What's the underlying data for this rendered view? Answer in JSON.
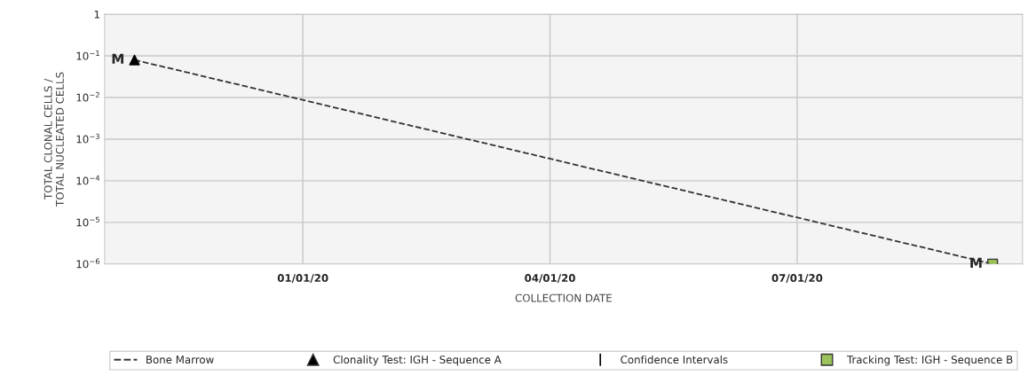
{
  "chart_data": {
    "type": "line",
    "xlabel": "COLLECTION DATE",
    "ylabel": "TOTAL CLONAL CELLS /\nTOTAL NUCLEATED CELLS",
    "log": "y",
    "grid": true,
    "legend": "bottom",
    "xlim": [
      "2019-10-20",
      "2020-09-22"
    ],
    "xticks": [
      {
        "value": "2020-01-01",
        "label": "01/01/20"
      },
      {
        "value": "2020-04-01",
        "label": "04/01/20"
      },
      {
        "value": "2020-07-01",
        "label": "07/01/20"
      }
    ],
    "ylim": [
      1e-06,
      1
    ],
    "yticks": [
      {
        "value": 1e-06,
        "label": "10$^{−6}$"
      },
      {
        "value": 1e-05,
        "label": "10$^{−5}$"
      },
      {
        "value": 0.0001,
        "label": "10$^{−4}$"
      },
      {
        "value": 0.001,
        "label": "10$^{−3}$"
      },
      {
        "value": 0.01,
        "label": "10$^{−2}$"
      },
      {
        "value": 0.1,
        "label": "10$^{−1}$"
      },
      1
    ],
    "series": [
      {
        "name": "Bone Marrow",
        "line_style": "dashed",
        "color": "#333333",
        "x": [
          "2019-10-31",
          "2020-09-11"
        ],
        "values": [
          0.08,
          1e-06
        ]
      },
      {
        "name": "Clonality Test: IGH - Sequence A",
        "type": "scatter",
        "marker": "triangle",
        "color": "#000000",
        "x": [
          "2019-10-31"
        ],
        "values": [
          0.08
        ]
      },
      {
        "name": "Confidence Intervals",
        "type": "scatter",
        "marker": "none",
        "color": "#000000"
      },
      {
        "name": "Tracking Test: IGH - Sequence B",
        "type": "scatter",
        "marker": "square",
        "color": "#9bc25a",
        "x": [
          "2020-09-11"
        ],
        "values": [
          1e-06
        ]
      }
    ],
    "annotations": [
      {
        "text": "M",
        "x": "2019-10-31",
        "y": 0.08
      },
      {
        "text": "M",
        "x": "2020-09-11",
        "y": 1e-06
      }
    ]
  }
}
